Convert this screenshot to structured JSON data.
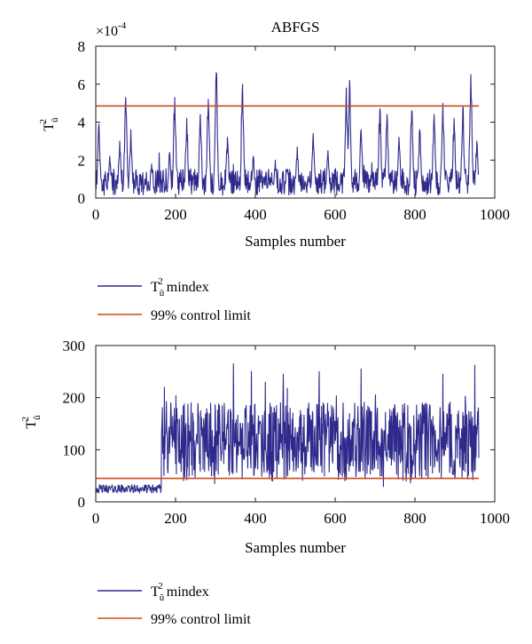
{
  "colors": {
    "statistic": "#2e2a8c",
    "limit": "#d24a1f",
    "axis": "#1a1a1a"
  },
  "chart_data": [
    {
      "type": "line",
      "title": "ABFGS",
      "xlabel": "Samples number",
      "ylabel_base": "T",
      "ylabel_sup": "2",
      "ylabel_sub": "û",
      "exponent_label": "×10",
      "exponent_power": "-4",
      "xlim": [
        0,
        1000
      ],
      "ylim": [
        0,
        8
      ],
      "xticks": [
        0,
        200,
        400,
        600,
        800,
        1000
      ],
      "yticks": [
        0,
        2,
        4,
        6,
        8
      ],
      "x_range": [
        1,
        960
      ],
      "grid": false,
      "legend_placement": "below",
      "control_limit": 4.85,
      "legend": [
        {
          "key": "statistic",
          "base": "T",
          "sup": "2",
          "sub": "û",
          "suffix": " mindex"
        },
        {
          "key": "limit",
          "text": "99% control limit"
        }
      ],
      "baseline_level": 1.0,
      "spikes": [
        {
          "x": 8,
          "y": 3.9
        },
        {
          "x": 35,
          "y": 2.2
        },
        {
          "x": 60,
          "y": 3.0
        },
        {
          "x": 75,
          "y": 5.3
        },
        {
          "x": 88,
          "y": 3.6
        },
        {
          "x": 140,
          "y": 1.8
        },
        {
          "x": 185,
          "y": 2.4
        },
        {
          "x": 198,
          "y": 5.3
        },
        {
          "x": 228,
          "y": 4.2
        },
        {
          "x": 262,
          "y": 4.4
        },
        {
          "x": 282,
          "y": 5.2
        },
        {
          "x": 302,
          "y": 6.6
        },
        {
          "x": 330,
          "y": 3.2
        },
        {
          "x": 368,
          "y": 6.0
        },
        {
          "x": 395,
          "y": 2.2
        },
        {
          "x": 450,
          "y": 2.0
        },
        {
          "x": 505,
          "y": 2.7
        },
        {
          "x": 545,
          "y": 3.4
        },
        {
          "x": 582,
          "y": 2.5
        },
        {
          "x": 628,
          "y": 5.8
        },
        {
          "x": 636,
          "y": 6.2
        },
        {
          "x": 665,
          "y": 3.6
        },
        {
          "x": 712,
          "y": 4.7
        },
        {
          "x": 730,
          "y": 4.4
        },
        {
          "x": 760,
          "y": 3.2
        },
        {
          "x": 792,
          "y": 4.6
        },
        {
          "x": 812,
          "y": 3.6
        },
        {
          "x": 848,
          "y": 4.4
        },
        {
          "x": 870,
          "y": 5.0
        },
        {
          "x": 898,
          "y": 4.2
        },
        {
          "x": 920,
          "y": 4.8
        },
        {
          "x": 940,
          "y": 6.5
        },
        {
          "x": 955,
          "y": 3.0
        }
      ]
    },
    {
      "type": "line",
      "title": "",
      "xlabel": "Samples number",
      "ylabel_base": "T",
      "ylabel_sup": "2",
      "ylabel_sub": "ũ",
      "xlim": [
        0,
        1000
      ],
      "ylim": [
        0,
        300
      ],
      "xticks": [
        0,
        200,
        400,
        600,
        800,
        1000
      ],
      "yticks": [
        0,
        100,
        200,
        300
      ],
      "x_range": [
        1,
        960
      ],
      "grid": false,
      "legend_placement": "below",
      "control_limit": 45,
      "legend": [
        {
          "key": "statistic",
          "base": "T",
          "sup": "2",
          "sub": "ũ",
          "suffix": " mindex"
        },
        {
          "key": "limit",
          "text": "99% control limit"
        }
      ],
      "normal_segment": {
        "x_end": 165,
        "mean": 25,
        "spread": 8
      },
      "fault_segment": {
        "x_start": 165,
        "mean": 115,
        "spread": 75,
        "max": 265,
        "min": 20
      },
      "peaks": [
        {
          "x": 172,
          "y": 220
        },
        {
          "x": 345,
          "y": 265
        },
        {
          "x": 390,
          "y": 250
        },
        {
          "x": 470,
          "y": 245
        },
        {
          "x": 560,
          "y": 250
        },
        {
          "x": 665,
          "y": 255
        },
        {
          "x": 870,
          "y": 245
        },
        {
          "x": 950,
          "y": 262
        }
      ]
    }
  ]
}
